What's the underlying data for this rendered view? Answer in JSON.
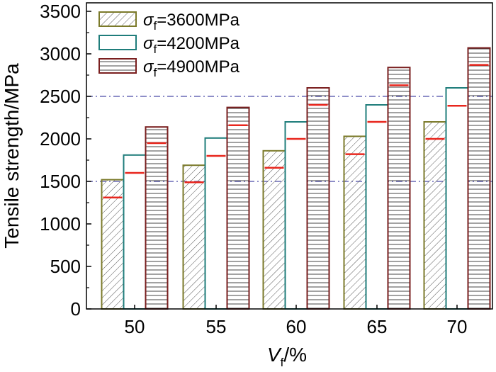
{
  "chart_data": {
    "type": "bar",
    "categories": [
      "50",
      "55",
      "60",
      "65",
      "70"
    ],
    "xlabel_symbol": "V",
    "xlabel_subscript": "f",
    "xlabel_unit": "/%",
    "ylabel": "Tensile strength/MPa",
    "ylim": [
      0,
      3600
    ],
    "yticks": [
      "0",
      "500",
      "1000",
      "1500",
      "2000",
      "2500",
      "3000",
      "3500"
    ],
    "ytick_values": [
      0,
      500,
      1000,
      1500,
      2000,
      2500,
      3000,
      3500
    ],
    "reference_lines": [
      1500,
      2500
    ],
    "reference_line_color": "#4a4aa8",
    "marker_color": "#e8261d",
    "series": [
      {
        "symbol": "σ",
        "subscript": "f",
        "value_text": "=3600MPa",
        "color": "#7b7a2a",
        "pattern": "diagonal",
        "values": [
          1520,
          1690,
          1860,
          2030,
          2200
        ],
        "markers": [
          1310,
          1490,
          1660,
          1820,
          2000
        ]
      },
      {
        "symbol": "σ",
        "subscript": "f",
        "value_text": "=4200MPa",
        "color": "#1f7d7b",
        "pattern": "none",
        "values": [
          1810,
          2010,
          2200,
          2400,
          2600
        ],
        "markers": [
          1600,
          1800,
          2000,
          2200,
          2390
        ]
      },
      {
        "symbol": "σ",
        "subscript": "f",
        "value_text": "=4900MPa",
        "color": "#7a1f1f",
        "pattern": "horizontal",
        "values": [
          2140,
          2370,
          2600,
          2840,
          3070
        ],
        "markers": [
          1950,
          2160,
          2400,
          2630,
          2870
        ]
      }
    ]
  }
}
